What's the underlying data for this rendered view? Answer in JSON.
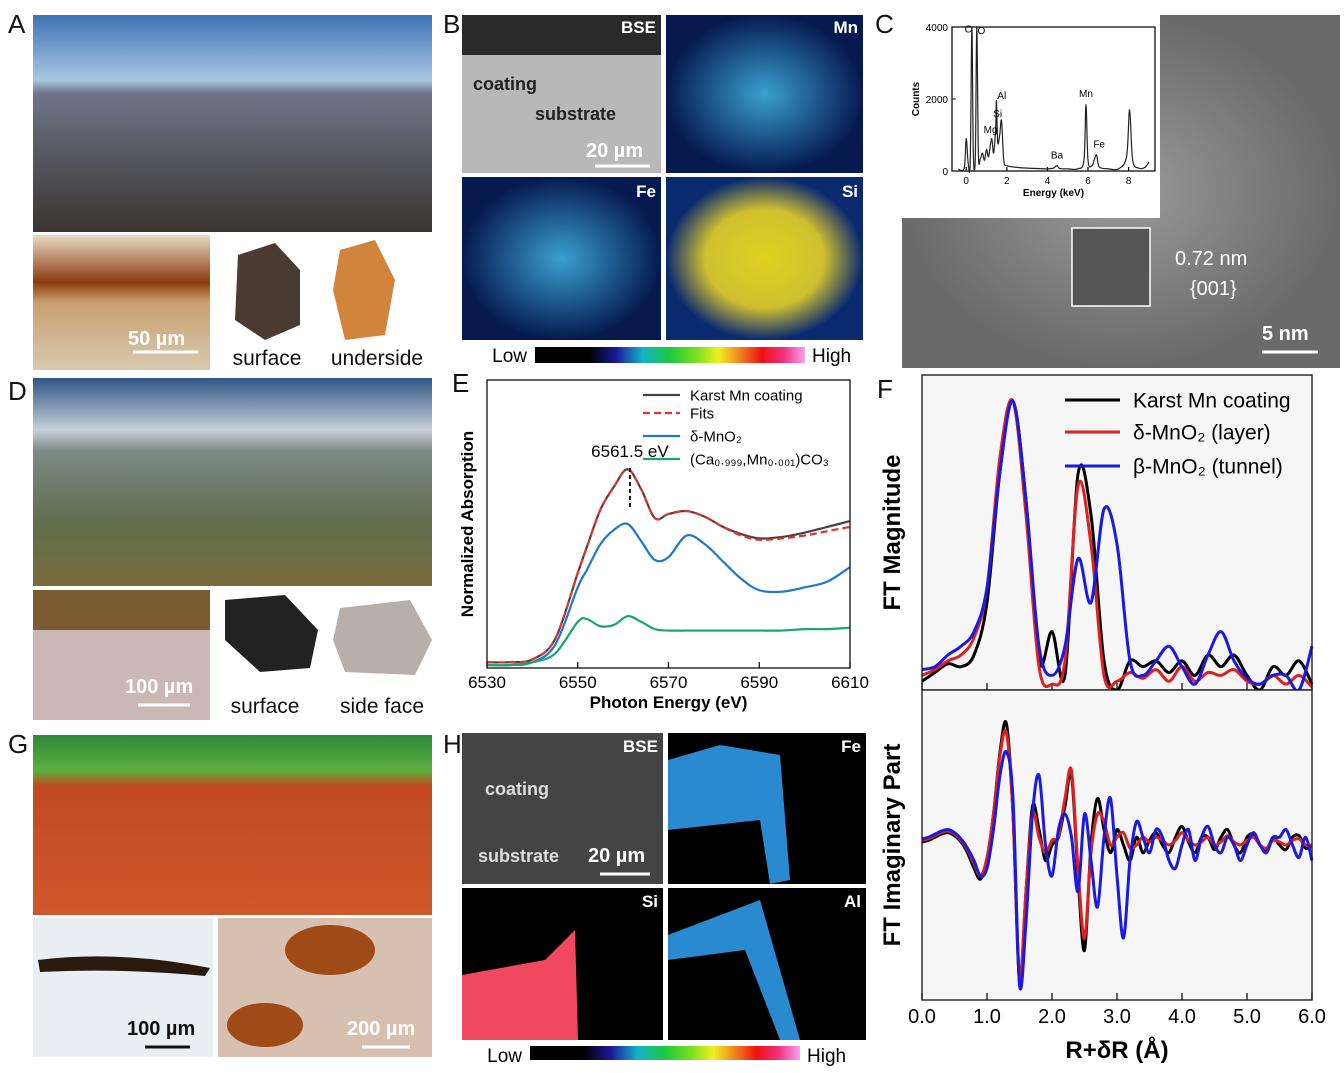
{
  "panels": {
    "A": {
      "label": "A",
      "scale_bar": "50 µm",
      "captions": [
        "surface",
        "underside"
      ]
    },
    "B": {
      "label": "B",
      "maps": [
        "BSE",
        "Mn",
        "Fe",
        "Si"
      ],
      "annotations": [
        "coating",
        "substrate"
      ],
      "scale_bar": "20 µm",
      "colorbar": [
        "Low",
        "High"
      ]
    },
    "C": {
      "label": "C",
      "d_spacing": "0.72 nm",
      "plane": "{001}",
      "scale_bar": "5 nm"
    },
    "D": {
      "label": "D",
      "scale_bar": "100 µm",
      "captions": [
        "surface",
        "side face"
      ]
    },
    "E": {
      "label": "E"
    },
    "F": {
      "label": "F"
    },
    "G": {
      "label": "G",
      "scale_bars": [
        "100 µm",
        "200 µm"
      ]
    },
    "H": {
      "label": "H",
      "maps": [
        "BSE",
        "Fe",
        "Si",
        "Al"
      ],
      "annotations": [
        "coating",
        "substrate"
      ],
      "scale_bar": "20 µm",
      "colorbar": [
        "Low",
        "High"
      ]
    }
  },
  "chart_data": [
    {
      "type": "line",
      "xlabel": "Energy (keV)",
      "ylabel": "Counts",
      "color": "#222",
      "x": [
        -0.4,
        -0.1,
        0.0,
        0.1,
        0.2,
        0.28,
        0.35,
        0.45,
        0.52,
        0.6,
        0.7,
        0.8,
        0.9,
        1.0,
        1.1,
        1.25,
        1.35,
        1.45,
        1.49,
        1.55,
        1.65,
        1.74,
        1.85,
        2.0,
        2.5,
        3.0,
        3.5,
        4.0,
        4.3,
        4.47,
        4.6,
        5.0,
        5.5,
        5.8,
        5.9,
        6.0,
        6.2,
        6.4,
        6.5,
        6.6,
        7.0,
        7.5,
        7.9,
        8.05,
        8.2,
        8.5,
        8.8,
        9.0
      ],
      "values": [
        50,
        80,
        900,
        200,
        300,
        4000,
        500,
        400,
        4000,
        500,
        350,
        500,
        300,
        600,
        400,
        900,
        500,
        1200,
        1950,
        800,
        1000,
        1400,
        300,
        150,
        100,
        80,
        70,
        60,
        80,
        150,
        70,
        60,
        60,
        300,
        1850,
        300,
        150,
        450,
        200,
        90,
        60,
        60,
        400,
        1700,
        300,
        80,
        100,
        250
      ],
      "xlim": [
        -0.7,
        9.3
      ],
      "ylim": [
        0,
        4000
      ],
      "xticks": [
        0,
        2,
        4,
        6,
        8
      ],
      "yticks": [
        0,
        2000,
        4000
      ],
      "annotations": [
        {
          "label": "C",
          "x": 0.1,
          "y": 3850
        },
        {
          "label": "O",
          "x": 0.75,
          "y": 3800
        },
        {
          "label": "Mg",
          "x": 1.2,
          "y": 1050
        },
        {
          "label": "Si",
          "x": 1.55,
          "y": 1500
        },
        {
          "label": "Al",
          "x": 1.75,
          "y": 2000
        },
        {
          "label": "Ba",
          "x": 4.47,
          "y": 350
        },
        {
          "label": "Mn",
          "x": 5.9,
          "y": 2050
        },
        {
          "label": "Fe",
          "x": 6.55,
          "y": 650
        }
      ]
    },
    {
      "type": "line",
      "xlabel": "Photon Energy (eV)",
      "ylabel": "Normalized Absorption",
      "x": [
        6530,
        6535,
        6540,
        6545,
        6550,
        6552,
        6555,
        6558,
        6561,
        6564,
        6567,
        6570,
        6574,
        6578,
        6582,
        6586,
        6590,
        6595,
        6600,
        6605,
        6610
      ],
      "series": [
        {
          "name": "Karst Mn coating",
          "color": "#444444",
          "values": [
            0.02,
            0.02,
            0.03,
            0.1,
            0.33,
            0.42,
            0.55,
            0.63,
            0.69,
            0.62,
            0.52,
            0.535,
            0.545,
            0.525,
            0.49,
            0.465,
            0.45,
            0.455,
            0.47,
            0.49,
            0.51
          ]
        },
        {
          "name": "Fits",
          "color": "#e8312a",
          "dash": true,
          "values": [
            0.02,
            0.02,
            0.03,
            0.1,
            0.33,
            0.42,
            0.55,
            0.63,
            0.69,
            0.62,
            0.52,
            0.535,
            0.545,
            0.525,
            0.49,
            0.46,
            0.445,
            0.45,
            0.46,
            0.475,
            0.49
          ]
        },
        {
          "name": "δ-MnO₂",
          "color": "#1f77d0",
          "values": [
            0.01,
            0.01,
            0.02,
            0.08,
            0.28,
            0.34,
            0.43,
            0.48,
            0.5,
            0.44,
            0.375,
            0.385,
            0.46,
            0.43,
            0.37,
            0.31,
            0.27,
            0.265,
            0.28,
            0.3,
            0.35
          ]
        },
        {
          "name": "(Ca₀.₉₉₉,Mn₀.₀₀₁)CO₃",
          "color": "#1aa56e",
          "values": [
            0.01,
            0.01,
            0.02,
            0.05,
            0.16,
            0.17,
            0.145,
            0.15,
            0.18,
            0.16,
            0.135,
            0.13,
            0.13,
            0.13,
            0.13,
            0.13,
            0.13,
            0.13,
            0.135,
            0.135,
            0.14
          ]
        }
      ],
      "xlim": [
        6530,
        6610
      ],
      "ylim": [
        0,
        1
      ],
      "xticks": [
        6530,
        6550,
        6570,
        6590,
        6610
      ],
      "annotations": [
        {
          "label": "6561.5 eV",
          "x": 6561.5
        }
      ]
    },
    {
      "type": "line",
      "ylabel": "FT Magnitude",
      "x": [
        0,
        0.2,
        0.4,
        0.6,
        0.8,
        1.0,
        1.2,
        1.4,
        1.6,
        1.8,
        2.0,
        2.2,
        2.4,
        2.6,
        2.8,
        3.0,
        3.2,
        3.4,
        3.6,
        3.8,
        4.0,
        4.2,
        4.4,
        4.6,
        4.8,
        5.0,
        5.2,
        5.4,
        5.6,
        5.8,
        6.0
      ],
      "series": [
        {
          "name": "Karst Mn coating",
          "color": "#000000",
          "values": [
            0.03,
            0.06,
            0.09,
            0.08,
            0.12,
            0.3,
            0.75,
            0.99,
            0.65,
            0.1,
            0.2,
            0.05,
            0.74,
            0.6,
            0.1,
            0.0,
            0.1,
            0.08,
            0.1,
            0.06,
            0.1,
            0.05,
            0.12,
            0.08,
            0.12,
            0.05,
            0.0,
            0.08,
            0.05,
            0.1,
            0.02
          ]
        },
        {
          "name": "δ-MnO₂ (layer)",
          "color": "#e02020",
          "values": [
            0.05,
            0.07,
            0.1,
            0.12,
            0.18,
            0.35,
            0.8,
            0.99,
            0.6,
            0.08,
            0.02,
            0.1,
            0.7,
            0.5,
            0.05,
            0.03,
            0.06,
            0.04,
            0.07,
            0.03,
            0.08,
            0.03,
            0.06,
            0.05,
            0.07,
            0.03,
            0.02,
            0.05,
            0.02,
            0.05,
            0.01
          ]
        },
        {
          "name": "β-MnO₂ (tunnel)",
          "color": "#1a1ae0",
          "values": [
            0.07,
            0.08,
            0.12,
            0.15,
            0.2,
            0.35,
            0.75,
            0.99,
            0.65,
            0.15,
            0.05,
            0.15,
            0.45,
            0.3,
            0.62,
            0.5,
            0.1,
            0.05,
            0.1,
            0.15,
            0.08,
            0.02,
            0.12,
            0.2,
            0.1,
            0.04,
            0.02,
            0.05,
            0.05,
            0.0,
            0.15
          ]
        }
      ],
      "xlim": [
        0,
        6
      ],
      "ylim": [
        0,
        1.08
      ],
      "xticks": [
        0,
        1,
        2,
        3,
        4,
        5,
        6
      ]
    },
    {
      "type": "line",
      "ylabel": "FT Imaginary Part",
      "xlabel": "R+δR (Å)",
      "x": [
        0,
        0.1,
        0.2,
        0.3,
        0.4,
        0.5,
        0.6,
        0.7,
        0.8,
        0.9,
        1.0,
        1.1,
        1.2,
        1.3,
        1.4,
        1.5,
        1.6,
        1.7,
        1.8,
        1.9,
        2.0,
        2.1,
        2.2,
        2.3,
        2.4,
        2.5,
        2.6,
        2.7,
        2.8,
        2.9,
        3.0,
        3.1,
        3.2,
        3.3,
        3.4,
        3.5,
        3.6,
        3.7,
        3.8,
        3.9,
        4.0,
        4.1,
        4.2,
        4.3,
        4.4,
        4.5,
        4.6,
        4.7,
        4.8,
        4.9,
        5.0,
        5.1,
        5.2,
        5.3,
        5.4,
        5.5,
        5.6,
        5.7,
        5.8,
        5.9,
        6.0
      ],
      "series": [
        {
          "color": "#000000",
          "values": [
            0.02,
            0.03,
            0.05,
            0.07,
            0.08,
            0.06,
            0.02,
            -0.05,
            -0.15,
            -0.22,
            -0.1,
            0.2,
            0.6,
            0.78,
            0.2,
            -0.88,
            -0.3,
            0.25,
            0.1,
            -0.1,
            0.0,
            0.05,
            0.25,
            0.45,
            -0.2,
            -0.68,
            0.0,
            0.3,
            0.1,
            -0.05,
            0.1,
            0.0,
            -0.1,
            0.05,
            -0.05,
            0.03,
            0.08,
            0.0,
            -0.05,
            0.05,
            0.12,
            0.02,
            -0.05,
            0.05,
            0.05,
            -0.03,
            0.05,
            0.1,
            0.0,
            -0.05,
            0.05,
            0.07,
            0.0,
            -0.04,
            0.05,
            0.0,
            -0.03,
            0.05,
            0.06,
            -0.02,
            0.0
          ]
        },
        {
          "color": "#e02020",
          "values": [
            0.03,
            0.04,
            0.06,
            0.08,
            0.09,
            0.07,
            0.03,
            -0.03,
            -0.12,
            -0.2,
            -0.08,
            0.2,
            0.58,
            0.72,
            0.2,
            -0.85,
            -0.3,
            0.2,
            0.05,
            -0.05,
            0.03,
            0.06,
            0.3,
            0.48,
            -0.15,
            -0.6,
            -0.05,
            0.2,
            0.15,
            0.0,
            0.05,
            0.08,
            -0.02,
            0.0,
            0.05,
            0.02,
            0.05,
            0.03,
            0.0,
            0.03,
            0.08,
            0.03,
            0.0,
            0.02,
            0.05,
            0.0,
            0.02,
            0.06,
            0.02,
            0.0,
            0.03,
            0.05,
            0.0,
            -0.02,
            0.03,
            0.02,
            0.0,
            0.03,
            0.04,
            0.0,
            0.0
          ]
        },
        {
          "color": "#1a1ae0",
          "values": [
            0.04,
            0.05,
            0.07,
            0.09,
            0.1,
            0.08,
            0.04,
            -0.02,
            -0.1,
            -0.2,
            -0.15,
            0.1,
            0.45,
            0.6,
            0.3,
            -0.9,
            -0.5,
            0.2,
            0.45,
            0.0,
            -0.2,
            0.1,
            0.2,
            0.05,
            -0.3,
            0.2,
            -0.1,
            -0.4,
            0.05,
            0.3,
            -0.2,
            -0.6,
            -0.1,
            0.15,
            0.05,
            -0.05,
            0.1,
            0.05,
            -0.1,
            -0.15,
            0.0,
            0.1,
            -0.1,
            0.05,
            0.12,
            0.0,
            -0.05,
            0.05,
            0.0,
            -0.1,
            0.0,
            0.08,
            0.0,
            -0.05,
            0.05,
            0.05,
            0.1,
            0.0,
            -0.08,
            0.05,
            -0.1
          ]
        }
      ],
      "xlim": [
        0,
        6
      ],
      "ylim": [
        -1,
        1
      ],
      "xticks": [
        {
          "value": 0,
          "label": "0.0"
        },
        {
          "value": 1,
          "label": "1.0"
        },
        {
          "value": 2,
          "label": "2.0"
        },
        {
          "value": 3,
          "label": "3.0"
        },
        {
          "value": 4,
          "label": "4.0"
        },
        {
          "value": 5,
          "label": "5.0"
        },
        {
          "value": 6,
          "label": "6.0"
        }
      ]
    }
  ]
}
